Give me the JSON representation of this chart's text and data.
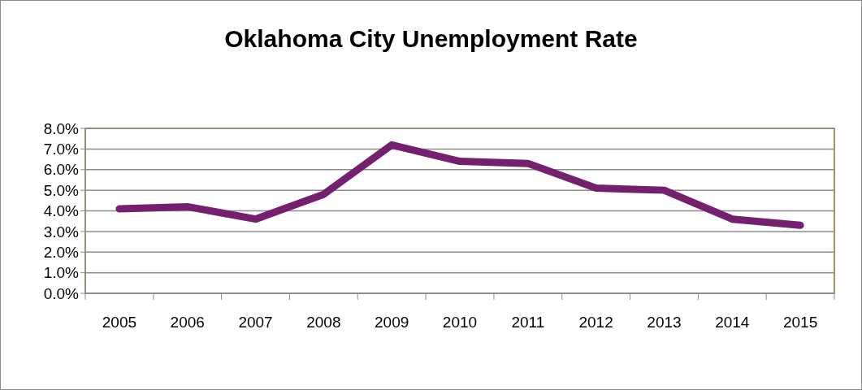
{
  "chart_data": {
    "type": "line",
    "title": "Oklahoma City Unemployment Rate",
    "categories": [
      "2005",
      "2006",
      "2007",
      "2008",
      "2009",
      "2010",
      "2011",
      "2012",
      "2013",
      "2014",
      "2015"
    ],
    "series": [
      {
        "color": "#74206f",
        "values": [
          4.1,
          4.2,
          3.6,
          4.8,
          7.2,
          6.4,
          6.3,
          5.1,
          5.0,
          3.6,
          3.3
        ]
      }
    ],
    "ylim": [
      0,
      8
    ],
    "yticks": [
      {
        "value": 0,
        "label": "0.0%"
      },
      {
        "value": 1,
        "label": "1.0%"
      },
      {
        "value": 2,
        "label": "2.0%"
      },
      {
        "value": 3,
        "label": "3.0%"
      },
      {
        "value": 4,
        "label": "4.0%"
      },
      {
        "value": 5,
        "label": "5.0%"
      },
      {
        "value": 6,
        "label": "6.0%"
      },
      {
        "value": 7,
        "label": "7.0%"
      },
      {
        "value": 8,
        "label": "8.0%"
      }
    ],
    "grid": "y",
    "marker": "none",
    "line_style": "solid"
  }
}
